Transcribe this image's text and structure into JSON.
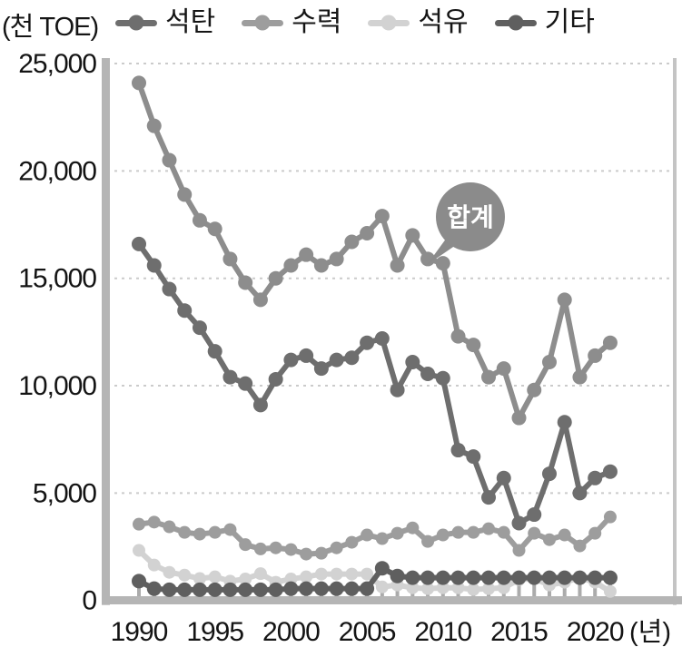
{
  "chart_data": {
    "type": "line",
    "title": "",
    "unit_label": "(천 TOE)",
    "x_axis_suffix_label": "(년)",
    "x": [
      1990,
      1991,
      1992,
      1993,
      1994,
      1995,
      1996,
      1997,
      1998,
      1999,
      2000,
      2001,
      2002,
      2003,
      2004,
      2005,
      2006,
      2007,
      2008,
      2009,
      2010,
      2011,
      2012,
      2013,
      2014,
      2015,
      2016,
      2017,
      2018,
      2019,
      2020,
      2021
    ],
    "x_tick_labels": [
      "1990",
      "1995",
      "2000",
      "2005",
      "2010",
      "2015",
      "2020"
    ],
    "x_tick_years": [
      1990,
      1995,
      2000,
      2005,
      2010,
      2015,
      2020
    ],
    "ylim": [
      0,
      25000
    ],
    "y_ticks": [
      0,
      5000,
      10000,
      15000,
      20000,
      25000
    ],
    "y_tick_labels": [
      "0",
      "5,000",
      "10,000",
      "15,000",
      "20,000",
      "25,000"
    ],
    "grid": "horizontal-dotted",
    "legend_position": "top",
    "annotation": {
      "label": "합계",
      "points_to_series": "합계"
    },
    "series": [
      {
        "key": "total",
        "name": "합계",
        "in_legend": false,
        "color": "#8d8d8d",
        "values": [
          24100,
          22100,
          20500,
          18900,
          17700,
          17300,
          15900,
          14800,
          14000,
          15000,
          15600,
          16100,
          15600,
          15900,
          16700,
          17100,
          17900,
          15600,
          17000,
          15900,
          15700,
          12300,
          11900,
          10400,
          10800,
          8500,
          9800,
          11100,
          14000,
          10400,
          11400,
          12000
        ]
      },
      {
        "key": "coal",
        "name": "석탄",
        "in_legend": true,
        "color": "#6e6e6e",
        "values": [
          16600,
          15600,
          14500,
          13500,
          12700,
          11600,
          10400,
          10100,
          9100,
          10300,
          11200,
          11400,
          10800,
          11200,
          11300,
          12000,
          12200,
          9800,
          11100,
          10550,
          10350,
          7000,
          6700,
          4800,
          5700,
          3600,
          4000,
          5900,
          8300,
          5000,
          5700,
          6000
        ]
      },
      {
        "key": "hydro",
        "name": "수력",
        "in_legend": true,
        "color": "#9d9d9d",
        "values": [
          3550,
          3650,
          3430,
          3170,
          3090,
          3170,
          3300,
          2600,
          2400,
          2450,
          2370,
          2160,
          2200,
          2450,
          2710,
          3050,
          2880,
          3130,
          3380,
          2750,
          3050,
          3170,
          3170,
          3340,
          3170,
          2330,
          3130,
          2830,
          3050,
          2540,
          3130,
          3890
        ]
      },
      {
        "key": "oil",
        "name": "석유",
        "in_legend": true,
        "color": "#d2d2d2",
        "values": [
          2330,
          1650,
          1310,
          1180,
          1020,
          1100,
          900,
          1000,
          1250,
          850,
          1000,
          1100,
          1230,
          1230,
          1230,
          1230,
          630,
          720,
          590,
          550,
          590,
          590,
          510,
          550,
          590,
          970,
          1015,
          720,
          850,
          1060,
          850,
          420
        ]
      },
      {
        "key": "other",
        "name": "기타",
        "in_legend": true,
        "color": "#5f5f5f",
        "values": [
          900,
          550,
          500,
          500,
          500,
          500,
          500,
          500,
          500,
          500,
          550,
          550,
          550,
          550,
          550,
          550,
          1500,
          1140,
          1060,
          1060,
          1060,
          1060,
          1060,
          1060,
          1060,
          1060,
          1060,
          1060,
          1060,
          1060,
          1060,
          1060
        ]
      }
    ]
  }
}
